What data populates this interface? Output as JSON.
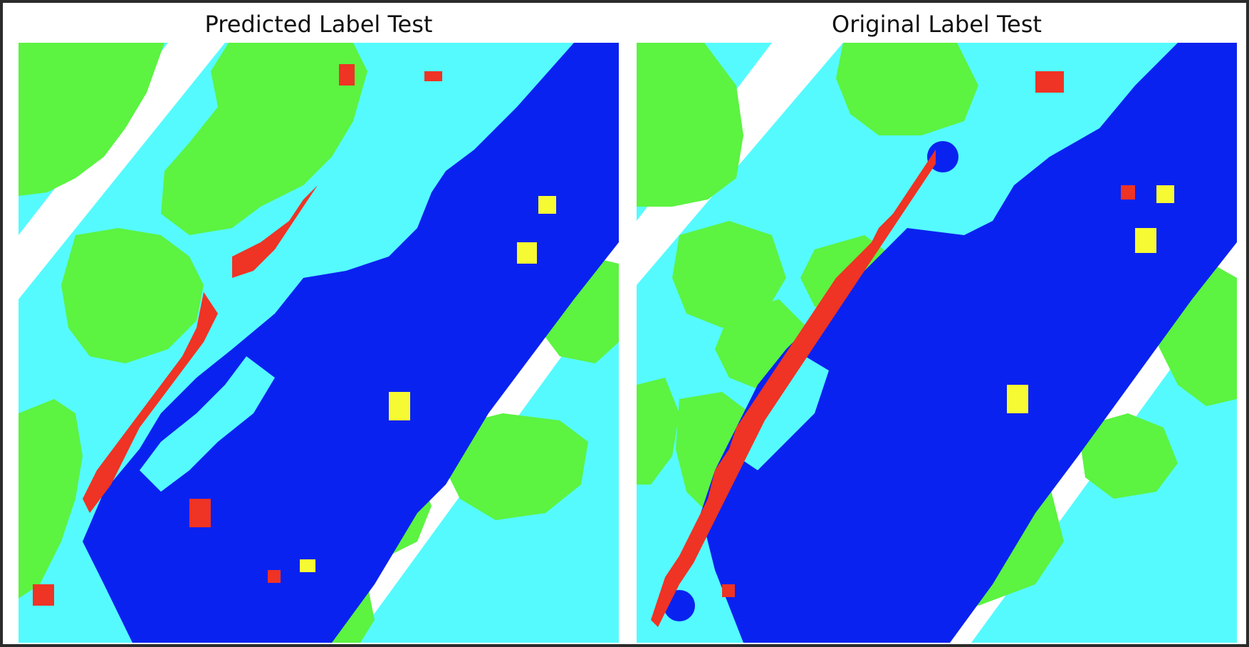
{
  "panels": [
    {
      "id": "predicted",
      "title": "Predicted Label Test"
    },
    {
      "id": "original",
      "title": "Original Label Test"
    }
  ],
  "colors": {
    "impervious": "#ffffff",
    "building": "#0a22f0",
    "low_vegetation": "#55fafe",
    "tree": "#5cf341",
    "car": "#f6fa33",
    "clutter": "#ef3324",
    "frame": "#2b2b2b"
  }
}
